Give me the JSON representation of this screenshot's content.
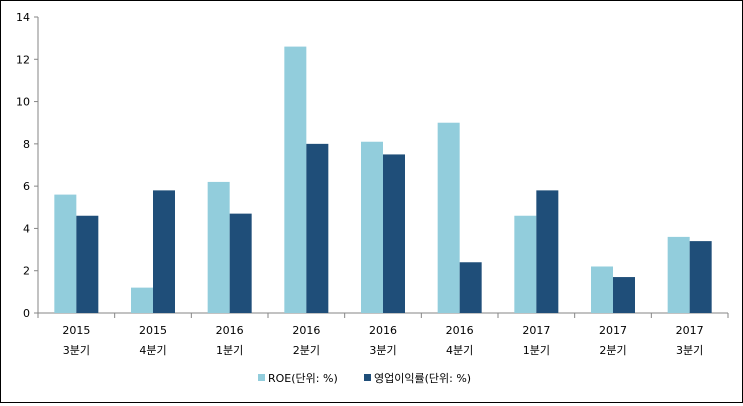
{
  "chart_data": {
    "type": "bar",
    "categories": [
      {
        "year": "2015",
        "quarter": "3분기"
      },
      {
        "year": "2015",
        "quarter": "4분기"
      },
      {
        "year": "2016",
        "quarter": "1분기"
      },
      {
        "year": "2016",
        "quarter": "2분기"
      },
      {
        "year": "2016",
        "quarter": "3분기"
      },
      {
        "year": "2016",
        "quarter": "4분기"
      },
      {
        "year": "2017",
        "quarter": "1분기"
      },
      {
        "year": "2017",
        "quarter": "2분기"
      },
      {
        "year": "2017",
        "quarter": "3분기"
      }
    ],
    "series": [
      {
        "name": "ROE(단위: %)",
        "color": "#92CDDC",
        "values": [
          5.6,
          1.2,
          6.2,
          12.6,
          8.1,
          9.0,
          4.6,
          2.2,
          3.6
        ]
      },
      {
        "name": "영업이익률(단위: %)",
        "color": "#1F4E79",
        "values": [
          4.6,
          5.8,
          4.7,
          8.0,
          7.5,
          2.4,
          5.8,
          1.7,
          3.4
        ]
      }
    ],
    "ylim": [
      0,
      14
    ],
    "yticks": [
      "0",
      "2",
      "4",
      "6",
      "8",
      "10",
      "12",
      "14"
    ],
    "grid": false,
    "legend_position": "bottom"
  }
}
